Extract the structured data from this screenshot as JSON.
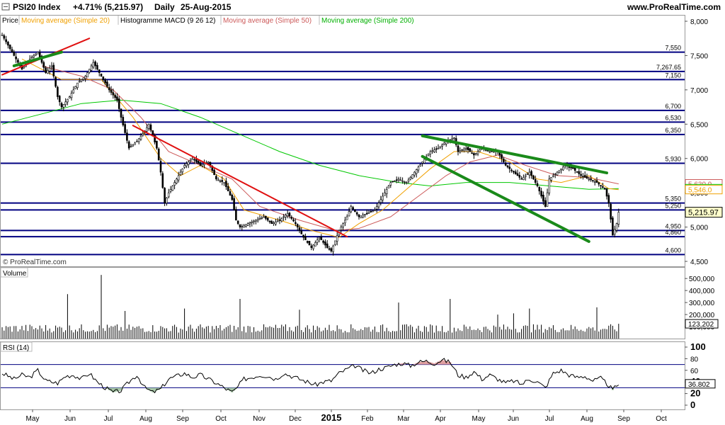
{
  "header": {
    "title": "PSI20 Index",
    "change": "+4.71% (5,215.97)",
    "period": "Daily",
    "date": "25-Aug-2015",
    "site": "www.ProRealTime.com"
  },
  "legend": {
    "price": "Price",
    "ma20": "Moving average (Simple 20)",
    "macd": "Histogramme MACD (9 26 12)",
    "ma50": "Moving average (Simple 50)",
    "ma200": "Moving average (Simple 200)"
  },
  "copyright": "© ProRealTime.com",
  "colors": {
    "candle": "#000000",
    "ma20": "#f0a000",
    "ma50": "#cc5a5a",
    "ma200": "#00c800",
    "trend_red": "#e01010",
    "trend_green": "#1a8a1a",
    "level": "#000080",
    "rsi_fill": "#a8c8a8",
    "rsi_fill_over": "#e0a0a0",
    "price_badge": "#ffffcc"
  },
  "chart_data": {
    "type": "candlestick",
    "x_ticks": [
      "May",
      "Jun",
      "Jul",
      "Aug",
      "Sep",
      "Oct",
      "Nov",
      "Dec",
      "2015",
      "Feb",
      "Mar",
      "Apr",
      "May",
      "Jun",
      "Jul",
      "Aug",
      "Sep",
      "Oct"
    ],
    "price_axis": {
      "range": [
        4500,
        8000
      ],
      "ticks": [
        "8,000",
        "7,500",
        "7,000",
        "6,500",
        "6,000",
        "5,500",
        "5,000",
        "4,500"
      ]
    },
    "levels": [
      7550,
      7267.65,
      7150,
      6700,
      6530,
      6350,
      5930,
      5350,
      5250,
      4950,
      4860,
      4600
    ],
    "level_labels": [
      "7,550",
      "7,267.65",
      "7,150",
      "6,700",
      "6,530",
      "6,350",
      "5,930",
      "5,350",
      "5,250",
      "4,950",
      "4,860",
      "4,600"
    ],
    "ma_badges": [
      {
        "label": "5,630.9",
        "value": 5630.9,
        "color": "#cc5a5a"
      },
      {
        "label": "5,560.0",
        "value": 5560.0,
        "color": "#00c800"
      },
      {
        "label": "5,546.0",
        "value": 5546.0,
        "color": "#f0a000"
      }
    ],
    "last_price": {
      "label": "5,215.97",
      "value": 5215.97
    },
    "price_path": [
      [
        0,
        7800
      ],
      [
        5,
        7550
      ],
      [
        10,
        7300
      ],
      [
        14,
        7450
      ],
      [
        18,
        7550
      ],
      [
        22,
        7250
      ],
      [
        25,
        7350
      ],
      [
        28,
        6900
      ],
      [
        30,
        6750
      ],
      [
        34,
        6900
      ],
      [
        38,
        7100
      ],
      [
        42,
        7200
      ],
      [
        46,
        7400
      ],
      [
        50,
        7200
      ],
      [
        54,
        7000
      ],
      [
        58,
        6850
      ],
      [
        60,
        6600
      ],
      [
        64,
        6150
      ],
      [
        68,
        6250
      ],
      [
        72,
        6400
      ],
      [
        74,
        6500
      ],
      [
        78,
        6150
      ],
      [
        80,
        5800
      ],
      [
        82,
        5350
      ],
      [
        84,
        5500
      ],
      [
        88,
        5700
      ],
      [
        92,
        5900
      ],
      [
        96,
        6000
      ],
      [
        100,
        5900
      ],
      [
        104,
        5950
      ],
      [
        108,
        5700
      ],
      [
        112,
        5650
      ],
      [
        116,
        5400
      ],
      [
        118,
        5100
      ],
      [
        120,
        5000
      ],
      [
        124,
        5050
      ],
      [
        128,
        5100
      ],
      [
        132,
        5150
      ],
      [
        136,
        5050
      ],
      [
        140,
        5100
      ],
      [
        144,
        5200
      ],
      [
        148,
        5050
      ],
      [
        152,
        4850
      ],
      [
        156,
        4700
      ],
      [
        160,
        4850
      ],
      [
        164,
        4700
      ],
      [
        166,
        4650
      ],
      [
        170,
        4950
      ],
      [
        174,
        5150
      ],
      [
        176,
        5300
      ],
      [
        180,
        5150
      ],
      [
        184,
        5200
      ],
      [
        188,
        5250
      ],
      [
        192,
        5450
      ],
      [
        196,
        5650
      ],
      [
        200,
        5700
      ],
      [
        204,
        5650
      ],
      [
        208,
        5800
      ],
      [
        212,
        5950
      ],
      [
        216,
        6100
      ],
      [
        220,
        6150
      ],
      [
        224,
        6250
      ],
      [
        228,
        6300
      ],
      [
        230,
        6100
      ],
      [
        234,
        6150
      ],
      [
        238,
        6050
      ],
      [
        242,
        6150
      ],
      [
        246,
        6100
      ],
      [
        250,
        6100
      ],
      [
        254,
        5900
      ],
      [
        258,
        5800
      ],
      [
        262,
        5700
      ],
      [
        266,
        5800
      ],
      [
        270,
        5600
      ],
      [
        272,
        5450
      ],
      [
        274,
        5300
      ],
      [
        276,
        5700
      ],
      [
        280,
        5800
      ],
      [
        284,
        5900
      ],
      [
        288,
        5850
      ],
      [
        292,
        5750
      ],
      [
        296,
        5700
      ],
      [
        300,
        5650
      ],
      [
        304,
        5550
      ],
      [
        306,
        5350
      ],
      [
        308,
        4880
      ],
      [
        310,
        5050
      ],
      [
        311,
        5216
      ]
    ],
    "ma20_path": [
      [
        10,
        7450
      ],
      [
        30,
        7150
      ],
      [
        50,
        7150
      ],
      [
        66,
        6600
      ],
      [
        80,
        6000
      ],
      [
        90,
        5750
      ],
      [
        100,
        5900
      ],
      [
        112,
        5700
      ],
      [
        122,
        5250
      ],
      [
        140,
        5100
      ],
      [
        156,
        4950
      ],
      [
        170,
        4850
      ],
      [
        180,
        5050
      ],
      [
        192,
        5250
      ],
      [
        204,
        5550
      ],
      [
        216,
        5850
      ],
      [
        228,
        6100
      ],
      [
        240,
        6100
      ],
      [
        256,
        5950
      ],
      [
        270,
        5700
      ],
      [
        282,
        5650
      ],
      [
        296,
        5750
      ],
      [
        306,
        5560
      ],
      [
        311,
        5546
      ]
    ],
    "ma50_path": [
      [
        20,
        7350
      ],
      [
        40,
        7200
      ],
      [
        56,
        7000
      ],
      [
        70,
        6600
      ],
      [
        84,
        6100
      ],
      [
        100,
        5900
      ],
      [
        116,
        5700
      ],
      [
        130,
        5300
      ],
      [
        150,
        5100
      ],
      [
        168,
        4950
      ],
      [
        180,
        4980
      ],
      [
        196,
        5150
      ],
      [
        210,
        5450
      ],
      [
        224,
        5750
      ],
      [
        236,
        5950
      ],
      [
        250,
        6050
      ],
      [
        264,
        5900
      ],
      [
        280,
        5750
      ],
      [
        296,
        5720
      ],
      [
        311,
        5630
      ]
    ],
    "ma200_path": [
      [
        0,
        6500
      ],
      [
        20,
        6650
      ],
      [
        40,
        6800
      ],
      [
        60,
        6850
      ],
      [
        80,
        6800
      ],
      [
        100,
        6600
      ],
      [
        120,
        6350
      ],
      [
        140,
        6100
      ],
      [
        160,
        5900
      ],
      [
        180,
        5750
      ],
      [
        200,
        5650
      ],
      [
        216,
        5600
      ],
      [
        234,
        5650
      ],
      [
        256,
        5650
      ],
      [
        276,
        5600
      ],
      [
        296,
        5550
      ],
      [
        311,
        5560
      ]
    ],
    "trend_lines": [
      {
        "color": "red",
        "points": [
          [
            0,
            7220
          ],
          [
            44,
            7750
          ]
        ]
      },
      {
        "color": "green",
        "points": [
          [
            6,
            7350
          ],
          [
            30,
            7550
          ]
        ]
      },
      {
        "color": "red",
        "points": [
          [
            66,
            6480
          ],
          [
            174,
            4860
          ]
        ]
      },
      {
        "color": "green",
        "points": [
          [
            212,
            6330
          ],
          [
            305,
            5790
          ]
        ]
      },
      {
        "color": "green",
        "points": [
          [
            212,
            6030
          ],
          [
            296,
            4790
          ]
        ]
      }
    ],
    "volume": {
      "axis_ticks": [
        "500,000",
        "400,000",
        "300,000",
        "200,000",
        "100,000"
      ],
      "range": [
        0,
        560000
      ],
      "last_label": "123,202",
      "last_value": 123202,
      "spikes": [
        [
          33,
          370000
        ],
        [
          50,
          530000
        ],
        [
          62,
          230000
        ],
        [
          92,
          250000
        ],
        [
          120,
          330000
        ],
        [
          150,
          240000
        ],
        [
          200,
          300000
        ],
        [
          226,
          330000
        ],
        [
          250,
          200000
        ],
        [
          258,
          210000
        ],
        [
          266,
          250000
        ],
        [
          300,
          260000
        ]
      ]
    },
    "rsi": {
      "label": "RSI (14)",
      "axis_ticks": [
        "100",
        "80",
        "60",
        "40",
        "20",
        "0"
      ],
      "range": [
        0,
        100
      ],
      "upper": 70,
      "lower": 30,
      "last_label": "36.802",
      "last_value": 36.802,
      "path": [
        [
          0,
          55
        ],
        [
          6,
          45
        ],
        [
          10,
          52
        ],
        [
          14,
          48
        ],
        [
          18,
          60
        ],
        [
          22,
          42
        ],
        [
          28,
          38
        ],
        [
          32,
          50
        ],
        [
          36,
          52
        ],
        [
          40,
          45
        ],
        [
          44,
          55
        ],
        [
          48,
          40
        ],
        [
          52,
          30
        ],
        [
          56,
          22
        ],
        [
          60,
          25
        ],
        [
          64,
          40
        ],
        [
          68,
          52
        ],
        [
          72,
          30
        ],
        [
          76,
          22
        ],
        [
          80,
          28
        ],
        [
          84,
          45
        ],
        [
          88,
          50
        ],
        [
          92,
          55
        ],
        [
          96,
          48
        ],
        [
          100,
          52
        ],
        [
          104,
          45
        ],
        [
          108,
          38
        ],
        [
          112,
          30
        ],
        [
          116,
          22
        ],
        [
          118,
          28
        ],
        [
          122,
          45
        ],
        [
          126,
          48
        ],
        [
          130,
          52
        ],
        [
          134,
          50
        ],
        [
          138,
          45
        ],
        [
          142,
          55
        ],
        [
          146,
          50
        ],
        [
          150,
          45
        ],
        [
          154,
          40
        ],
        [
          158,
          35
        ],
        [
          162,
          40
        ],
        [
          166,
          42
        ],
        [
          170,
          55
        ],
        [
          174,
          62
        ],
        [
          178,
          68
        ],
        [
          182,
          60
        ],
        [
          186,
          55
        ],
        [
          190,
          62
        ],
        [
          194,
          65
        ],
        [
          198,
          70
        ],
        [
          202,
          72
        ],
        [
          206,
          68
        ],
        [
          210,
          74
        ],
        [
          214,
          76
        ],
        [
          218,
          72
        ],
        [
          222,
          78
        ],
        [
          226,
          74
        ],
        [
          230,
          52
        ],
        [
          234,
          48
        ],
        [
          238,
          58
        ],
        [
          242,
          45
        ],
        [
          246,
          52
        ],
        [
          250,
          45
        ],
        [
          254,
          38
        ],
        [
          258,
          42
        ],
        [
          262,
          36
        ],
        [
          266,
          45
        ],
        [
          270,
          40
        ],
        [
          274,
          30
        ],
        [
          278,
          55
        ],
        [
          282,
          60
        ],
        [
          286,
          52
        ],
        [
          290,
          48
        ],
        [
          294,
          50
        ],
        [
          298,
          42
        ],
        [
          302,
          46
        ],
        [
          306,
          34
        ],
        [
          308,
          26
        ],
        [
          311,
          37
        ]
      ]
    }
  }
}
